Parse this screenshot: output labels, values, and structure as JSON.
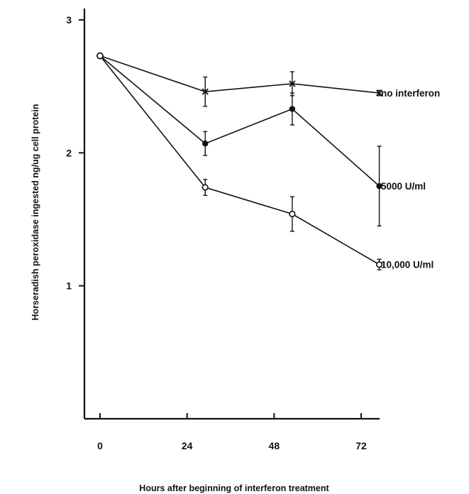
{
  "chart_data": {
    "type": "line",
    "title": "",
    "xlabel": "Hours after beginning of interferon treatment",
    "ylabel": "Horseradish peroxidase ingested ng/ug cell protein",
    "x_ticks": [
      "0",
      "24",
      "48",
      "72"
    ],
    "x_tick_values": [
      0,
      24,
      48,
      72
    ],
    "y_ticks": [
      "1",
      "2",
      "3"
    ],
    "y_tick_values": [
      1,
      2,
      3
    ],
    "xlim": [
      -4,
      80
    ],
    "ylim": [
      0,
      3.1
    ],
    "grid": false,
    "legend": "inline labels at right end of each series",
    "series": [
      {
        "name": "no interferon",
        "marker": "x",
        "x": [
          0,
          29,
          53,
          77
        ],
        "y": [
          2.73,
          2.46,
          2.52,
          2.45
        ],
        "err": [
          0,
          0.11,
          0.09,
          0.02
        ]
      },
      {
        "name": "5000 U/ml",
        "marker": "filled-circle",
        "x": [
          0,
          29,
          53,
          77
        ],
        "y": [
          2.73,
          2.07,
          2.33,
          1.75
        ],
        "err": [
          0,
          0.09,
          0.12,
          0.3
        ]
      },
      {
        "name": "10,000 U/ml",
        "marker": "open-circle",
        "x": [
          0,
          29,
          53,
          77
        ],
        "y": [
          2.73,
          1.74,
          1.54,
          1.16
        ],
        "err": [
          0,
          0.06,
          0.13,
          0.04
        ]
      }
    ]
  }
}
